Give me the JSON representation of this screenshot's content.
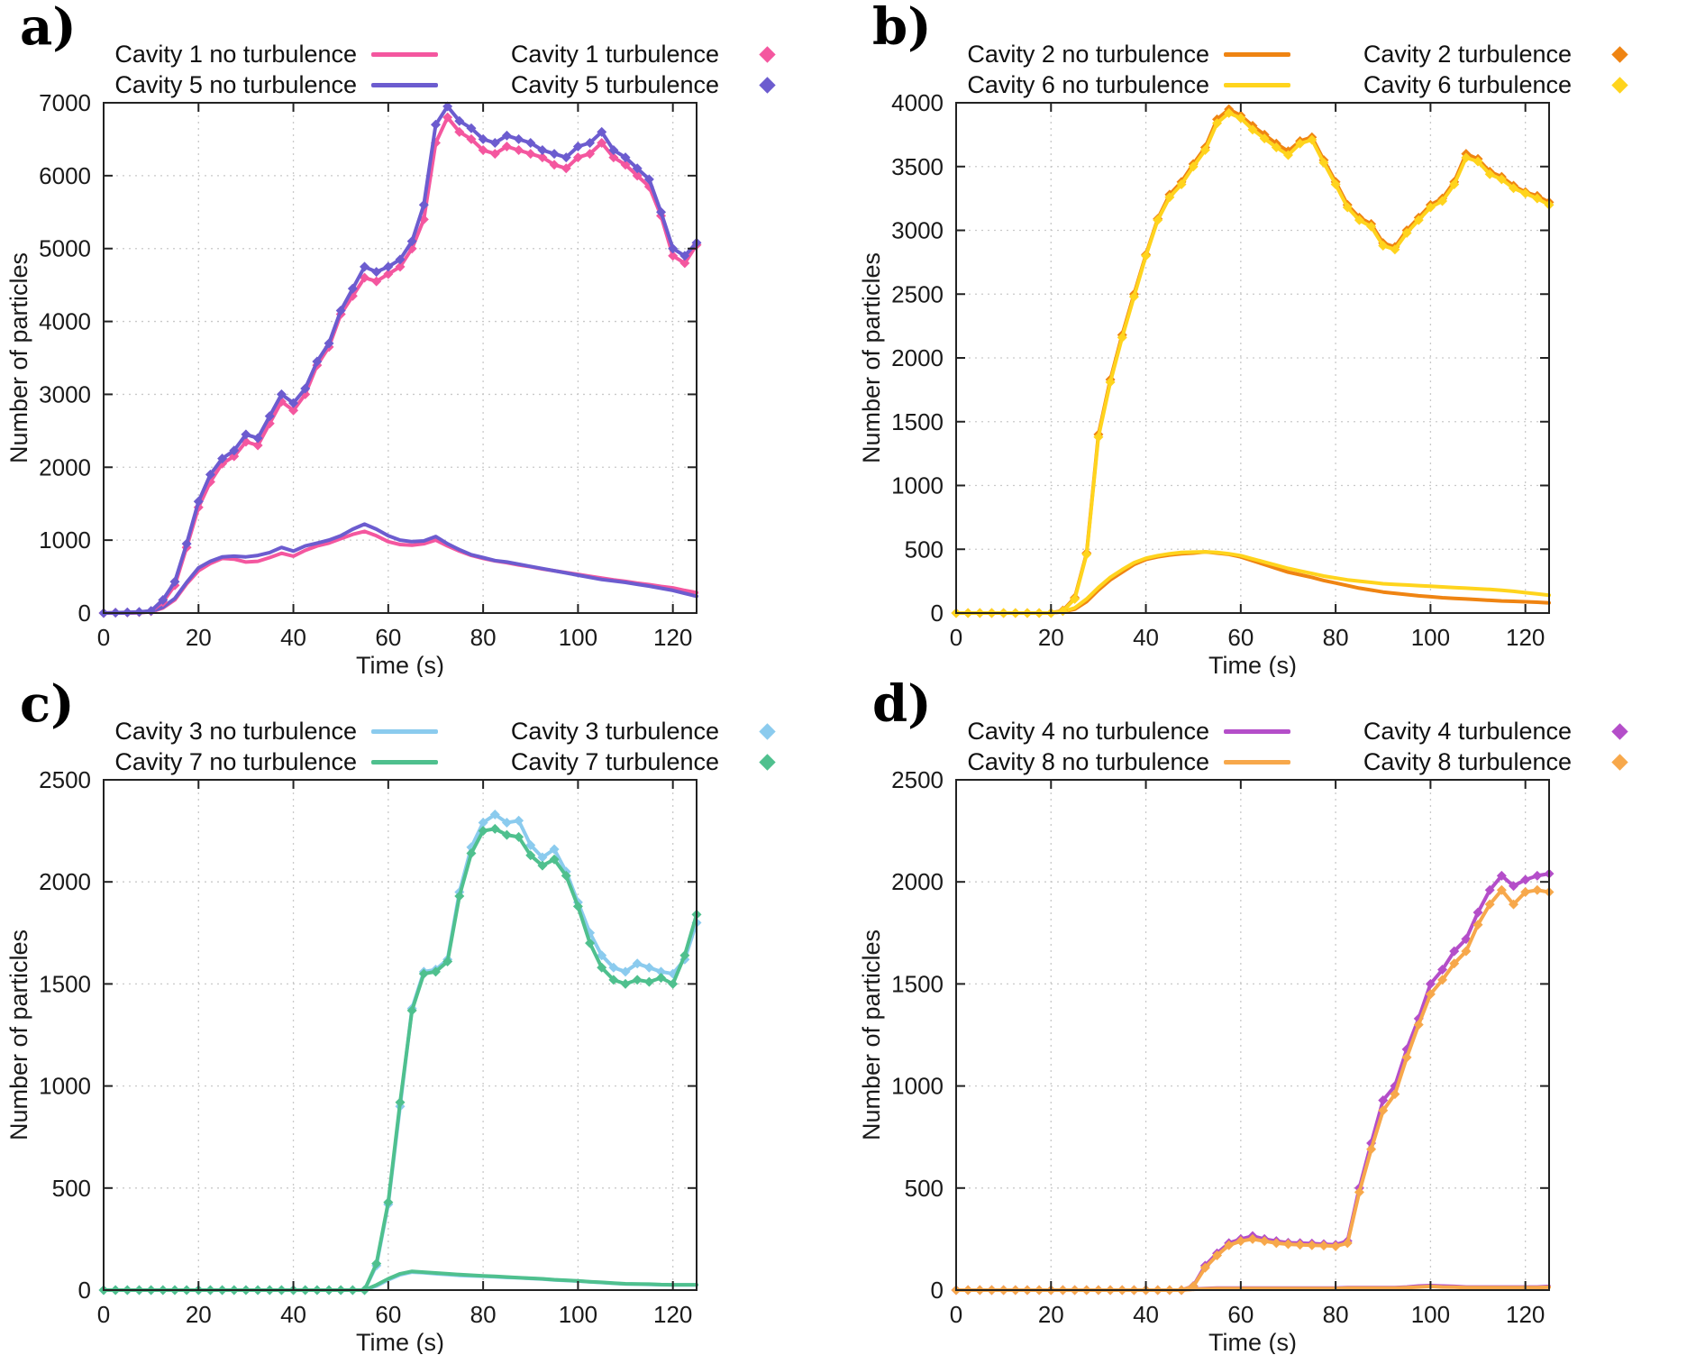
{
  "figure": {
    "background": "#ffffff"
  },
  "chart_data": [
    {
      "id": "a",
      "type": "line",
      "label": "a)",
      "xlabel": "Time (s)",
      "ylabel": "Number of particles",
      "xlim": [
        0,
        125
      ],
      "ylim": [
        0,
        7000
      ],
      "xticks": [
        0,
        20,
        40,
        60,
        80,
        100,
        120
      ],
      "yticks": [
        0,
        1000,
        2000,
        3000,
        4000,
        5000,
        6000,
        7000
      ],
      "grid": true,
      "legend_position": "top",
      "x_start": 0,
      "x_step": 2.5,
      "legend_order": [
        0,
        2,
        1,
        3
      ],
      "series": [
        {
          "name": "Cavity 1 no turbulence",
          "color": "#f4579f",
          "style": "lines",
          "values": [
            0,
            0,
            0,
            5,
            15,
            70,
            180,
            400,
            580,
            680,
            750,
            740,
            700,
            710,
            760,
            820,
            780,
            860,
            920,
            960,
            1020,
            1080,
            1120,
            1060,
            980,
            940,
            930,
            950,
            1000,
            920,
            850,
            790,
            750,
            715,
            690,
            660,
            635,
            605,
            580,
            555,
            530,
            505,
            480,
            455,
            435,
            410,
            390,
            365,
            345,
            310,
            280
          ]
        },
        {
          "name": "Cavity 5 no turbulence",
          "color": "#6c5ccf",
          "style": "lines",
          "values": [
            0,
            0,
            0,
            5,
            20,
            80,
            200,
            420,
            620,
            710,
            770,
            780,
            770,
            790,
            830,
            900,
            850,
            920,
            960,
            1000,
            1060,
            1150,
            1220,
            1150,
            1060,
            1000,
            980,
            990,
            1050,
            950,
            870,
            800,
            760,
            720,
            700,
            670,
            640,
            610,
            580,
            550,
            520,
            490,
            460,
            440,
            420,
            395,
            370,
            340,
            310,
            270,
            230
          ]
        },
        {
          "name": "Cavity 1 turbulence",
          "color": "#f4579f",
          "style": "linespoints",
          "marker": "diamond",
          "values": [
            0,
            5,
            8,
            12,
            25,
            150,
            380,
            900,
            1450,
            1800,
            2050,
            2150,
            2350,
            2300,
            2600,
            2900,
            2780,
            3000,
            3400,
            3650,
            4100,
            4350,
            4600,
            4550,
            4650,
            4750,
            5000,
            5400,
            6450,
            6800,
            6600,
            6500,
            6350,
            6300,
            6400,
            6350,
            6300,
            6250,
            6150,
            6100,
            6250,
            6300,
            6450,
            6250,
            6150,
            6000,
            5850,
            5450,
            4900,
            4800,
            5050
          ]
        },
        {
          "name": "Cavity 5 turbulence",
          "color": "#6c5ccf",
          "style": "linespoints",
          "marker": "diamond",
          "values": [
            0,
            5,
            10,
            15,
            30,
            180,
            430,
            950,
            1530,
            1900,
            2120,
            2230,
            2450,
            2400,
            2700,
            3000,
            2880,
            3080,
            3450,
            3700,
            4150,
            4450,
            4750,
            4680,
            4750,
            4850,
            5100,
            5600,
            6700,
            6950,
            6750,
            6650,
            6500,
            6450,
            6550,
            6500,
            6450,
            6350,
            6300,
            6250,
            6400,
            6450,
            6600,
            6350,
            6250,
            6100,
            5950,
            5500,
            5000,
            4900,
            5080
          ]
        }
      ]
    },
    {
      "id": "b",
      "type": "line",
      "label": "b)",
      "xlabel": "Time (s)",
      "ylabel": "Number of particles",
      "xlim": [
        0,
        125
      ],
      "ylim": [
        0,
        4000
      ],
      "xticks": [
        0,
        20,
        40,
        60,
        80,
        100,
        120
      ],
      "yticks": [
        0,
        500,
        1000,
        1500,
        2000,
        2500,
        3000,
        3500,
        4000
      ],
      "grid": true,
      "legend_position": "top",
      "x_start": 0,
      "x_step": 2.5,
      "legend_order": [
        0,
        2,
        1,
        3
      ],
      "series": [
        {
          "name": "Cavity 2 no turbulence",
          "color": "#ef8412",
          "style": "lines",
          "values": [
            0,
            0,
            0,
            0,
            0,
            0,
            0,
            0,
            0,
            10,
            30,
            90,
            180,
            260,
            320,
            380,
            420,
            440,
            455,
            465,
            470,
            480,
            470,
            460,
            440,
            410,
            380,
            350,
            320,
            300,
            280,
            255,
            235,
            215,
            195,
            180,
            165,
            155,
            145,
            135,
            128,
            120,
            115,
            110,
            105,
            100,
            95,
            92,
            88,
            85,
            80
          ]
        },
        {
          "name": "Cavity 6 no turbulence",
          "color": "#ffd41d",
          "style": "lines",
          "values": [
            0,
            0,
            0,
            0,
            0,
            0,
            0,
            0,
            0,
            12,
            40,
            110,
            200,
            280,
            340,
            395,
            430,
            450,
            465,
            475,
            478,
            480,
            475,
            465,
            450,
            425,
            400,
            375,
            350,
            330,
            310,
            290,
            275,
            260,
            250,
            240,
            230,
            225,
            220,
            215,
            210,
            205,
            200,
            195,
            190,
            185,
            178,
            170,
            160,
            150,
            140
          ]
        },
        {
          "name": "Cavity 2 turbulence",
          "color": "#ef8412",
          "style": "linespoints",
          "marker": "diamond",
          "values": [
            0,
            0,
            0,
            0,
            0,
            0,
            0,
            0,
            0,
            20,
            120,
            470,
            1400,
            1830,
            2180,
            2500,
            2810,
            3090,
            3280,
            3380,
            3520,
            3650,
            3870,
            3950,
            3900,
            3820,
            3750,
            3680,
            3620,
            3700,
            3730,
            3550,
            3380,
            3200,
            3100,
            3050,
            2900,
            2870,
            3000,
            3100,
            3200,
            3250,
            3380,
            3600,
            3560,
            3460,
            3420,
            3350,
            3300,
            3270,
            3220
          ]
        },
        {
          "name": "Cavity 6 turbulence",
          "color": "#ffd41d",
          "style": "linespoints",
          "marker": "diamond",
          "values": [
            0,
            0,
            0,
            0,
            0,
            0,
            0,
            0,
            0,
            15,
            110,
            460,
            1380,
            1810,
            2160,
            2480,
            2800,
            3080,
            3260,
            3360,
            3500,
            3630,
            3840,
            3920,
            3880,
            3790,
            3720,
            3650,
            3590,
            3680,
            3710,
            3530,
            3360,
            3180,
            3080,
            3030,
            2880,
            2850,
            2980,
            3080,
            3180,
            3230,
            3360,
            3570,
            3540,
            3440,
            3400,
            3330,
            3290,
            3250,
            3200
          ]
        }
      ]
    },
    {
      "id": "c",
      "type": "line",
      "label": "c)",
      "xlabel": "Time (s)",
      "ylabel": "Number of particles",
      "xlim": [
        0,
        125
      ],
      "ylim": [
        0,
        2500
      ],
      "xticks": [
        0,
        20,
        40,
        60,
        80,
        100,
        120
      ],
      "yticks": [
        0,
        500,
        1000,
        1500,
        2000,
        2500
      ],
      "grid": true,
      "legend_position": "top",
      "x_start": 0,
      "x_step": 2.5,
      "legend_order": [
        0,
        2,
        1,
        3
      ],
      "series": [
        {
          "name": "Cavity 3 no turbulence",
          "color": "#8bcbee",
          "style": "lines",
          "values": [
            0,
            0,
            0,
            0,
            0,
            0,
            0,
            0,
            0,
            0,
            0,
            0,
            0,
            0,
            0,
            0,
            0,
            0,
            0,
            0,
            0,
            0,
            0,
            20,
            50,
            75,
            88,
            85,
            80,
            76,
            72,
            70,
            68,
            65,
            62,
            60,
            57,
            54,
            50,
            47,
            44,
            40,
            37,
            33,
            30,
            29,
            28,
            26,
            25,
            25,
            25
          ]
        },
        {
          "name": "Cavity 7 no turbulence",
          "color": "#4fc08e",
          "style": "lines",
          "values": [
            0,
            0,
            0,
            0,
            0,
            0,
            0,
            0,
            0,
            0,
            0,
            0,
            0,
            0,
            0,
            0,
            0,
            0,
            0,
            0,
            0,
            0,
            0,
            25,
            55,
            80,
            92,
            88,
            84,
            80,
            76,
            73,
            70,
            67,
            64,
            61,
            58,
            55,
            51,
            48,
            45,
            41,
            38,
            34,
            31,
            30,
            29,
            27,
            26,
            26,
            26
          ]
        },
        {
          "name": "Cavity 3 turbulence",
          "color": "#8bcbee",
          "style": "linespoints",
          "marker": "diamond",
          "values": [
            0,
            0,
            0,
            0,
            0,
            0,
            0,
            0,
            0,
            0,
            0,
            0,
            0,
            0,
            0,
            0,
            0,
            0,
            0,
            0,
            0,
            0,
            0,
            120,
            420,
            900,
            1380,
            1560,
            1570,
            1620,
            1950,
            2170,
            2290,
            2330,
            2290,
            2300,
            2180,
            2120,
            2160,
            2050,
            1900,
            1750,
            1640,
            1580,
            1560,
            1600,
            1580,
            1560,
            1550,
            1620,
            1800
          ]
        },
        {
          "name": "Cavity 7 turbulence",
          "color": "#4fc08e",
          "style": "linespoints",
          "marker": "diamond",
          "values": [
            0,
            0,
            0,
            0,
            0,
            0,
            0,
            0,
            0,
            0,
            0,
            0,
            0,
            0,
            0,
            0,
            0,
            0,
            0,
            0,
            0,
            0,
            0,
            130,
            430,
            920,
            1370,
            1550,
            1560,
            1610,
            1930,
            2140,
            2250,
            2260,
            2230,
            2220,
            2130,
            2080,
            2110,
            2030,
            1880,
            1700,
            1580,
            1520,
            1500,
            1520,
            1510,
            1530,
            1500,
            1640,
            1840
          ]
        }
      ]
    },
    {
      "id": "d",
      "type": "line",
      "label": "d)",
      "xlabel": "Time (s)",
      "ylabel": "Number of particles",
      "xlim": [
        0,
        125
      ],
      "ylim": [
        0,
        2500
      ],
      "xticks": [
        0,
        20,
        40,
        60,
        80,
        100,
        120
      ],
      "yticks": [
        0,
        500,
        1000,
        1500,
        2000,
        2500
      ],
      "grid": true,
      "legend_position": "top",
      "x_start": 0,
      "x_step": 2.5,
      "legend_order": [
        0,
        2,
        1,
        3
      ],
      "series": [
        {
          "name": "Cavity 4 no turbulence",
          "color": "#b44ec9",
          "style": "lines",
          "values": [
            0,
            0,
            0,
            0,
            0,
            0,
            0,
            0,
            0,
            0,
            0,
            0,
            0,
            0,
            0,
            0,
            0,
            0,
            0,
            0,
            5,
            8,
            10,
            10,
            10,
            10,
            10,
            10,
            10,
            10,
            10,
            10,
            10,
            12,
            12,
            12,
            12,
            12,
            15,
            20,
            22,
            20,
            18,
            15,
            15,
            15,
            15,
            15,
            15,
            15,
            18
          ]
        },
        {
          "name": "Cavity 8 no turbulence",
          "color": "#f7a84b",
          "style": "lines",
          "values": [
            0,
            0,
            0,
            0,
            0,
            0,
            0,
            0,
            0,
            0,
            0,
            0,
            0,
            0,
            0,
            0,
            0,
            0,
            0,
            0,
            4,
            6,
            8,
            8,
            8,
            8,
            8,
            8,
            8,
            8,
            8,
            8,
            8,
            10,
            10,
            10,
            10,
            10,
            12,
            15,
            18,
            15,
            14,
            12,
            12,
            12,
            12,
            12,
            12,
            12,
            14
          ]
        },
        {
          "name": "Cavity 4 turbulence",
          "color": "#b44ec9",
          "style": "linespoints",
          "marker": "diamond",
          "values": [
            0,
            0,
            0,
            0,
            0,
            0,
            0,
            0,
            0,
            0,
            0,
            0,
            0,
            0,
            0,
            0,
            0,
            0,
            0,
            0,
            20,
            120,
            180,
            230,
            250,
            265,
            250,
            240,
            232,
            230,
            228,
            225,
            222,
            240,
            500,
            720,
            930,
            1000,
            1180,
            1330,
            1500,
            1570,
            1660,
            1720,
            1850,
            1960,
            2030,
            1980,
            2010,
            2030,
            2040
          ]
        },
        {
          "name": "Cavity 8 turbulence",
          "color": "#f7a84b",
          "style": "linespoints",
          "marker": "diamond",
          "values": [
            0,
            0,
            0,
            0,
            0,
            0,
            0,
            0,
            0,
            0,
            0,
            0,
            0,
            0,
            0,
            0,
            0,
            0,
            0,
            0,
            18,
            110,
            170,
            220,
            240,
            250,
            240,
            230,
            225,
            222,
            220,
            218,
            215,
            230,
            480,
            690,
            880,
            960,
            1140,
            1300,
            1450,
            1520,
            1600,
            1660,
            1790,
            1890,
            1960,
            1890,
            1950,
            1960,
            1950
          ]
        }
      ]
    }
  ]
}
